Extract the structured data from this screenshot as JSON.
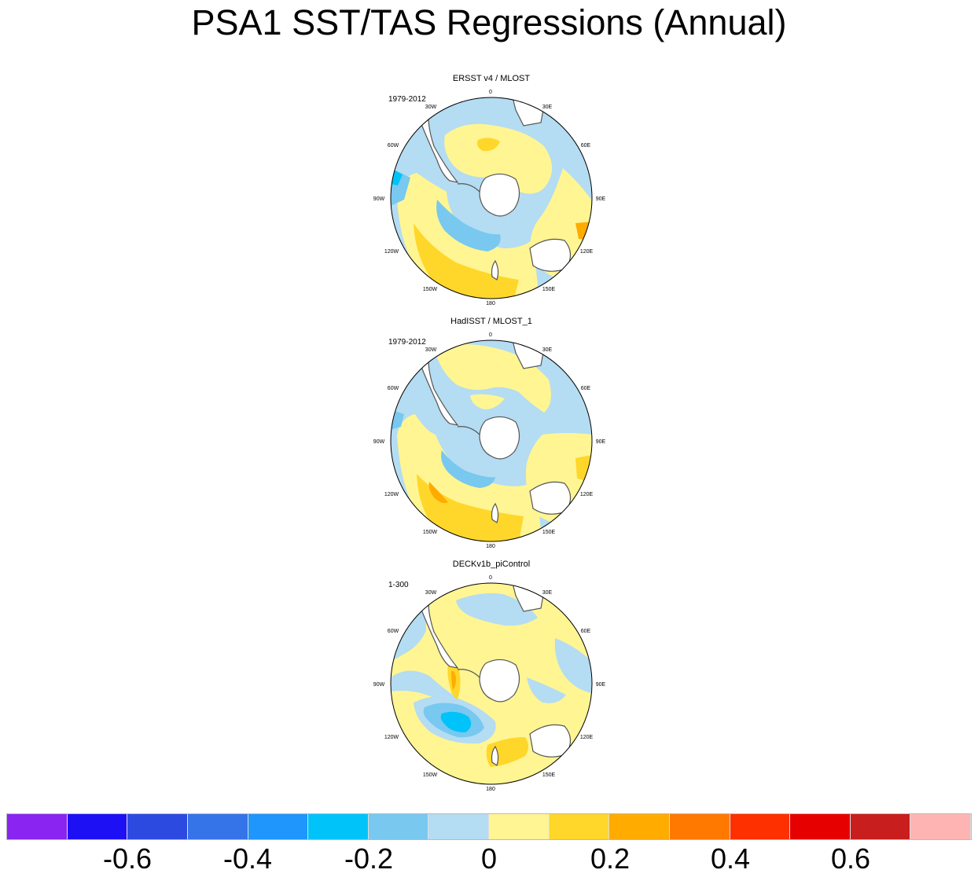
{
  "title": "PSA1 SST/TAS Regressions (Annual)",
  "longitude_labels": [
    "0",
    "30E",
    "60E",
    "90E",
    "120E",
    "150E",
    "180",
    "150W",
    "120W",
    "90W",
    "60W",
    "30W"
  ],
  "panels": [
    {
      "title": "ERSST v4 / MLOST",
      "period": "1979-2012"
    },
    {
      "title": "HadISST / MLOST_1",
      "period": "1979-2012"
    },
    {
      "title": "DECKv1b_piControl",
      "period": "1-300"
    }
  ],
  "colorbar": {
    "colors": [
      "#8a24f0",
      "#1e10f5",
      "#2d4ae0",
      "#3573e8",
      "#1e96fb",
      "#00c3fa",
      "#78c8f0",
      "#b4dcf2",
      "#fff593",
      "#ffd72a",
      "#ffab00",
      "#ff7800",
      "#ff3000",
      "#e60000",
      "#c81e1e",
      "#ffb4b4"
    ],
    "labels": [
      "-0.6",
      "-0.4",
      "-0.2",
      "0",
      "0.2",
      "0.4",
      "0.6"
    ]
  },
  "palette": {
    "land": "#ffffff",
    "coast": "#555555",
    "light_blue": "#b4dcf2",
    "mid_blue": "#78c8f0",
    "cyan": "#00c3fa",
    "pale_yellow": "#fff593",
    "gold": "#ffd72a",
    "orange": "#ffab00",
    "red_orange": "#ff7800"
  }
}
